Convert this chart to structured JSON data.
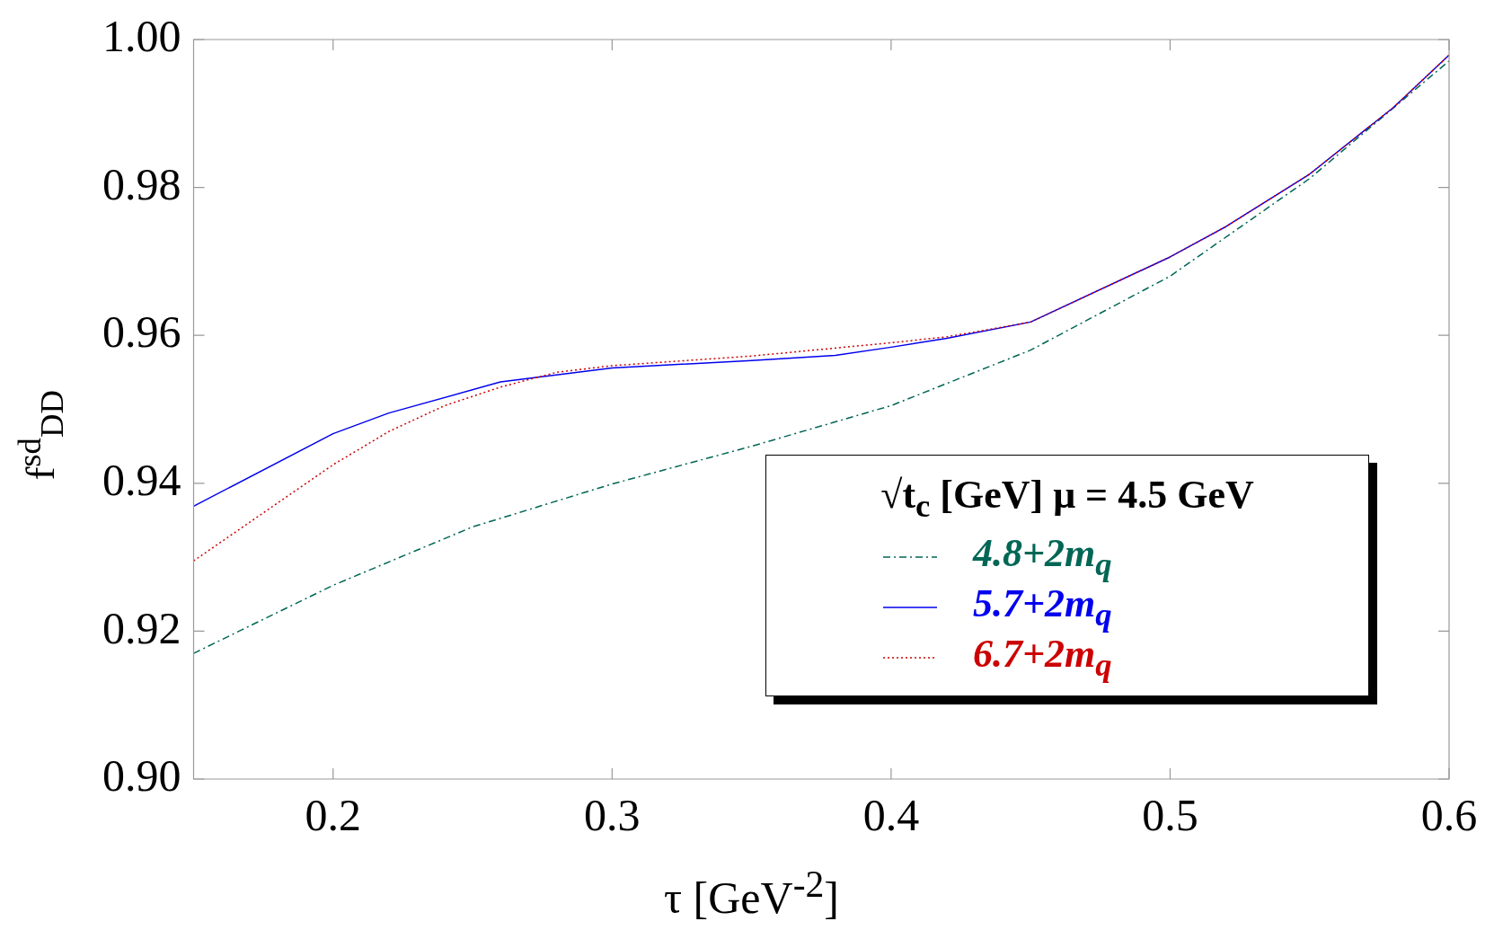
{
  "chart_data": {
    "type": "line",
    "xlabel": "τ [GeV$^{-2}$]",
    "ylabel": "f$^{sd}$$_{DD}$",
    "legend_title": "√t$_{c}$ [GeV] μ = 4.5 GeV",
    "legend": "bottom right",
    "grid": false,
    "marker": "none",
    "xlim": [
      0.15,
      0.6
    ],
    "xticks": [
      0.2,
      0.3,
      0.4,
      0.5,
      0.6
    ],
    "ylim": [
      0.9,
      1.0
    ],
    "yticks": [
      {
        "value": 0.9,
        "label": "0.90"
      },
      {
        "value": 0.92,
        "label": "0.92"
      },
      {
        "value": 0.94,
        "label": "0.94"
      },
      {
        "value": 0.96,
        "label": "0.96"
      },
      {
        "value": 0.98,
        "label": "0.98"
      },
      {
        "value": 1.0,
        "label": "1.00"
      }
    ],
    "series": [
      {
        "name": "4.8+2m$_{q}$",
        "color": "#006655",
        "line_style": "dashdot",
        "x": [
          0.15,
          0.2,
          0.25,
          0.3,
          0.35,
          0.4,
          0.45,
          0.5,
          0.55,
          0.6
        ],
        "values": [
          0.917,
          0.9262,
          0.9341,
          0.9399,
          0.945,
          0.9505,
          0.958,
          0.968,
          0.9812,
          0.9971
        ]
      },
      {
        "name": "5.7+2m$_{q}$",
        "color": "#0000ee",
        "line_style": "solid",
        "x": [
          0.15,
          0.2,
          0.22,
          0.26,
          0.3,
          0.35,
          0.38,
          0.4,
          0.42,
          0.45,
          0.5,
          0.52,
          0.55,
          0.58,
          0.6
        ],
        "values": [
          0.9369,
          0.9467,
          0.9495,
          0.9537,
          0.9556,
          0.9566,
          0.9573,
          0.9584,
          0.9596,
          0.9618,
          0.9706,
          0.9747,
          0.9818,
          0.9908,
          0.9979
        ]
      },
      {
        "name": "6.7+2m$_{q}$",
        "color": "#cc0000",
        "line_style": "dotted",
        "x": [
          0.15,
          0.2,
          0.22,
          0.24,
          0.26,
          0.28,
          0.3,
          0.35,
          0.4,
          0.42,
          0.45,
          0.5,
          0.52,
          0.55,
          0.58,
          0.6
        ],
        "values": [
          0.9295,
          0.9425,
          0.947,
          0.9505,
          0.953,
          0.955,
          0.9559,
          0.9572,
          0.959,
          0.9598,
          0.9618,
          0.9706,
          0.9747,
          0.9818,
          0.9908,
          0.9979
        ]
      }
    ]
  }
}
